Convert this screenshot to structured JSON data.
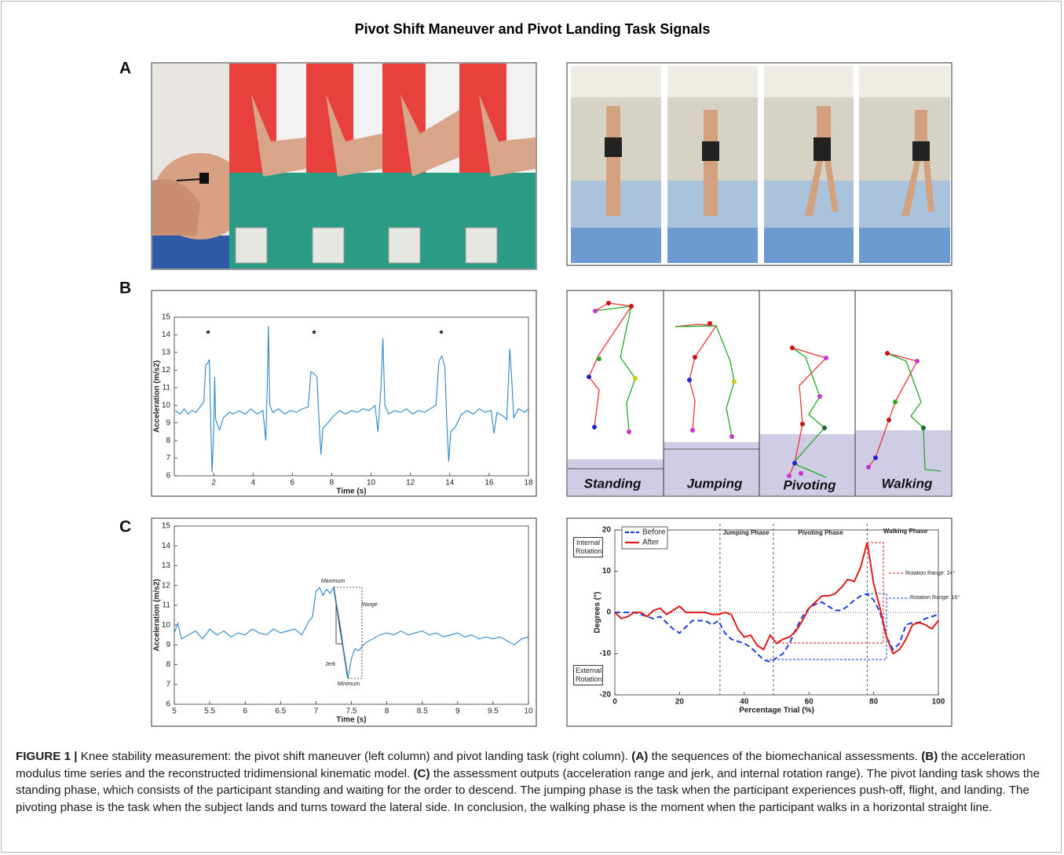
{
  "title": "Pivot Shift Maneuver and Pivot Landing Task Signals",
  "panels": [
    "A",
    "B",
    "C"
  ],
  "kinematic_labels": [
    "Standing",
    "Jumping",
    "Pivoting",
    "Walking"
  ],
  "chart_data": [
    {
      "type": "line",
      "x_label": "Time (s)",
      "y_label": "Acceleration (m/s2)",
      "color": "#2c86c8",
      "annotations": [
        "*",
        "*",
        "*"
      ],
      "xlim": [
        0,
        18
      ],
      "ylim": [
        6,
        15
      ],
      "xticks": [
        2,
        4,
        6,
        8,
        10,
        12,
        14,
        16,
        18
      ],
      "yticks": [
        6,
        7,
        8,
        9,
        10,
        11,
        12,
        13,
        14,
        15
      ],
      "x": [
        0.05,
        0.3,
        0.5,
        0.7,
        0.9,
        1.1,
        1.3,
        1.5,
        1.6,
        1.7,
        1.78,
        1.85,
        1.92,
        2.0,
        2.05,
        2.1,
        2.3,
        2.5,
        2.8,
        3.0,
        3.3,
        3.6,
        3.9,
        4.2,
        4.5,
        4.65,
        4.72,
        4.78,
        4.85,
        5.0,
        5.3,
        5.6,
        5.9,
        6.2,
        6.5,
        6.8,
        6.95,
        7.1,
        7.25,
        7.35,
        7.45,
        7.55,
        7.8,
        8.1,
        8.4,
        8.7,
        9.0,
        9.3,
        9.6,
        9.9,
        10.2,
        10.35,
        10.5,
        10.6,
        10.7,
        10.9,
        11.2,
        11.5,
        11.8,
        12.1,
        12.4,
        12.7,
        13.0,
        13.3,
        13.45,
        13.6,
        13.75,
        13.85,
        13.95,
        14.05,
        14.3,
        14.6,
        14.9,
        15.2,
        15.5,
        15.8,
        16.1,
        16.25,
        16.4,
        16.7,
        16.9,
        17.05,
        17.15,
        17.25,
        17.5,
        17.8,
        18.0
      ],
      "values": [
        9.7,
        9.5,
        9.8,
        9.5,
        9.7,
        9.6,
        9.9,
        10.2,
        12.3,
        12.4,
        12.6,
        9,
        6.2,
        8.5,
        11.6,
        9.2,
        8.6,
        9.3,
        9.6,
        9.5,
        9.7,
        9.5,
        9.8,
        9.5,
        9.7,
        8.0,
        11,
        14.5,
        10,
        9.6,
        9.8,
        9.5,
        9.7,
        9.6,
        9.8,
        9.9,
        11.9,
        11.8,
        11.6,
        9.2,
        7.2,
        8.7,
        9.0,
        9.4,
        9.7,
        9.5,
        9.7,
        9.6,
        9.8,
        9.7,
        10,
        8.5,
        11,
        13.8,
        10,
        9.5,
        9.7,
        9.6,
        9.8,
        9.5,
        9.7,
        9.6,
        9.8,
        10,
        12.5,
        12.8,
        12.2,
        9,
        6.8,
        8.5,
        8.8,
        9.5,
        9.7,
        9.5,
        9.8,
        9.6,
        9.7,
        8.4,
        9.6,
        9.4,
        9.2,
        13.2,
        11.5,
        9.3,
        9.8,
        9.6,
        9.8
      ]
    },
    {
      "type": "line",
      "x_label": "Time (s)",
      "y_label": "Acceleration (m/s2)",
      "color": "#2c86c8",
      "annotations": [
        "Maximum",
        "Range",
        "Jerk",
        "Minimum"
      ],
      "xlim": [
        5,
        10
      ],
      "ylim": [
        6,
        15
      ],
      "xticks": [
        5,
        5.5,
        6,
        6.5,
        7,
        7.5,
        8,
        8.5,
        9,
        9.5,
        10
      ],
      "yticks": [
        6,
        7,
        8,
        9,
        10,
        11,
        12,
        13,
        14,
        15
      ],
      "x": [
        5.0,
        5.05,
        5.1,
        5.2,
        5.3,
        5.4,
        5.5,
        5.6,
        5.7,
        5.8,
        5.9,
        6.0,
        6.1,
        6.2,
        6.3,
        6.4,
        6.5,
        6.6,
        6.7,
        6.8,
        6.9,
        6.95,
        7.0,
        7.05,
        7.1,
        7.15,
        7.2,
        7.25,
        7.3,
        7.35,
        7.4,
        7.45,
        7.5,
        7.55,
        7.6,
        7.7,
        7.8,
        7.9,
        8.0,
        8.1,
        8.2,
        8.3,
        8.4,
        8.5,
        8.6,
        8.7,
        8.8,
        8.9,
        9.0,
        9.1,
        9.2,
        9.3,
        9.4,
        9.5,
        9.6,
        9.7,
        9.8,
        9.9,
        10.0
      ],
      "values": [
        9.6,
        10.1,
        9.3,
        9.5,
        9.7,
        9.3,
        9.8,
        9.5,
        9.7,
        9.4,
        9.6,
        9.5,
        9.8,
        9.6,
        9.5,
        9.8,
        9.6,
        9.7,
        9.8,
        9.5,
        10.2,
        10.4,
        11.7,
        11.9,
        11.5,
        11.8,
        11.6,
        11.9,
        10.8,
        9.8,
        8.4,
        7.3,
        8.3,
        8.8,
        8.7,
        9.1,
        9.3,
        9.5,
        9.6,
        9.5,
        9.7,
        9.5,
        9.6,
        9.7,
        9.5,
        9.6,
        9.4,
        9.5,
        9.6,
        9.4,
        9.5,
        9.3,
        9.4,
        9.3,
        9.4,
        9.2,
        9.0,
        9.3,
        9.4
      ]
    },
    {
      "type": "line",
      "x_label": "Percentage Trial (%)",
      "y_label": "Degrees (°)",
      "phase_labels": [
        "Jumping Phase",
        "Pivoting Phase",
        "Walking Phase"
      ],
      "phase_bounds": [
        32.5,
        49,
        78
      ],
      "rotation_labels": [
        "Internal Rotation",
        "External Rotation"
      ],
      "range_labels": [
        "Rotation Range: 24°",
        "Rotation Range: 16°"
      ],
      "zero_line": true,
      "legend": "upper left",
      "xlim": [
        0,
        100
      ],
      "ylim": [
        -20,
        20
      ],
      "xticks": [
        0,
        20,
        40,
        60,
        80,
        100
      ],
      "yticks": [
        -20,
        -10,
        0,
        10,
        20
      ],
      "x": [
        0,
        2,
        4,
        6,
        8,
        10,
        12,
        14,
        16,
        18,
        20,
        22,
        24,
        26,
        28,
        30,
        32,
        34,
        36,
        38,
        40,
        42,
        44,
        46,
        48,
        50,
        52,
        54,
        56,
        58,
        60,
        62,
        64,
        66,
        68,
        70,
        72,
        74,
        76,
        78,
        80,
        82,
        84,
        86,
        88,
        90,
        92,
        94,
        96,
        98,
        100
      ],
      "series": [
        {
          "name": "Before",
          "color": "#1f3fe0",
          "style": "dashed",
          "values": [
            0,
            0,
            0,
            0,
            -0.5,
            -1,
            -1.5,
            -1,
            -2.5,
            -4,
            -5,
            -3.5,
            -2,
            -2,
            -2,
            -3,
            -2,
            -5,
            -6.5,
            -7,
            -7.5,
            -8.5,
            -10,
            -11.5,
            -12,
            -11,
            -10,
            -7.5,
            -4,
            -1,
            1,
            2,
            2.5,
            1.5,
            0.5,
            0.5,
            1.5,
            3,
            4,
            4.5,
            3,
            0,
            -6,
            -9,
            -7.5,
            -3,
            -2.5,
            -2.5,
            -1.5,
            -1,
            -0.5
          ]
        },
        {
          "name": "After",
          "color": "#e01b1b",
          "style": "solid",
          "values": [
            0,
            -1.5,
            -1,
            0,
            0,
            -1,
            0.5,
            1,
            -0.5,
            0.5,
            1.5,
            0,
            0,
            0,
            0,
            -0.5,
            -0.5,
            0,
            -0.5,
            -4,
            -6,
            -5.5,
            -8,
            -9,
            -5.5,
            -7.5,
            -6.5,
            -6,
            -4.5,
            -2,
            1,
            2.5,
            4,
            4,
            4.5,
            6,
            8,
            7.5,
            11,
            17,
            7,
            1,
            -6,
            -10,
            -9,
            -6.5,
            -3,
            -2.5,
            -3,
            -4,
            -2
          ]
        }
      ]
    }
  ],
  "caption": [
    "FIGURE 1 |",
    "Knee stability measurement: the pivot shift maneuver (left column) and pivot landing task (right column).",
    "(A)",
    "the sequences of the biomechanical assessments.",
    "(B)",
    "the acceleration modulus time series and the reconstructed tridimensional kinematic model.",
    "(C)",
    "the assessment outputs (acceleration range and jerk, and internal rotation range). The pivot landing task shows the standing phase, which consists of the participant standing and waiting for the order to descend. The jumping phase is the task when the participant experiences push-off, flight, and landing. The pivoting phase is the task when the subject lands and turns toward the lateral side. In conclusion, the walking phase is the moment when the participant walks in a horizontal straight line."
  ]
}
